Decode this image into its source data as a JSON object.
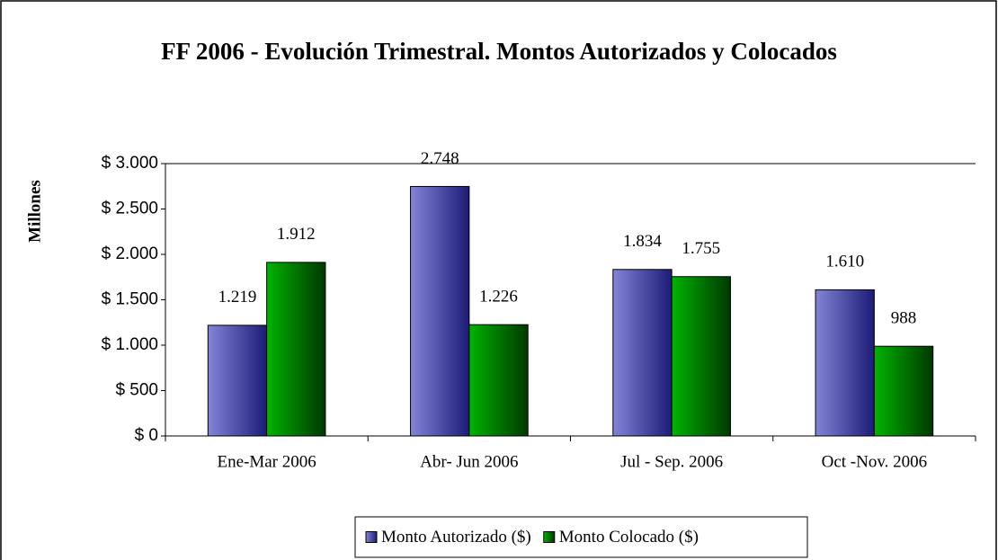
{
  "chart_data": {
    "type": "bar",
    "title": "FF 2006 - Evolución Trimestral. Montos Autorizados y Colocados",
    "y_label": "Millones",
    "categories": [
      "Ene-Mar 2006",
      "Abr- Jun 2006",
      "Jul - Sep. 2006",
      "Oct -Nov. 2006"
    ],
    "series": [
      {
        "name": "Monto Autorizado ($)",
        "color": "#4a4aa8",
        "values": [
          1219,
          2748,
          1834,
          1610
        ],
        "value_labels": [
          "1.219",
          "2.748",
          "1.834",
          "1.610"
        ]
      },
      {
        "name": "Monto Colocado ($)",
        "color": "#008000",
        "values": [
          1912,
          1226,
          1755,
          988
        ],
        "value_labels": [
          "1.912",
          "1.226",
          "1.755",
          "988"
        ]
      }
    ],
    "ylim": [
      0,
      3000
    ],
    "yticks": [
      {
        "value": 0,
        "label": "$ 0"
      },
      {
        "value": 500,
        "label": "$ 500"
      },
      {
        "value": 1000,
        "label": "$ 1.000"
      },
      {
        "value": 1500,
        "label": "$ 1.500"
      },
      {
        "value": 2000,
        "label": "$ 2.000"
      },
      {
        "value": 2500,
        "label": "$ 2.500"
      },
      {
        "value": 3000,
        "label": "$ 3.000"
      }
    ],
    "legend": "bottom"
  }
}
